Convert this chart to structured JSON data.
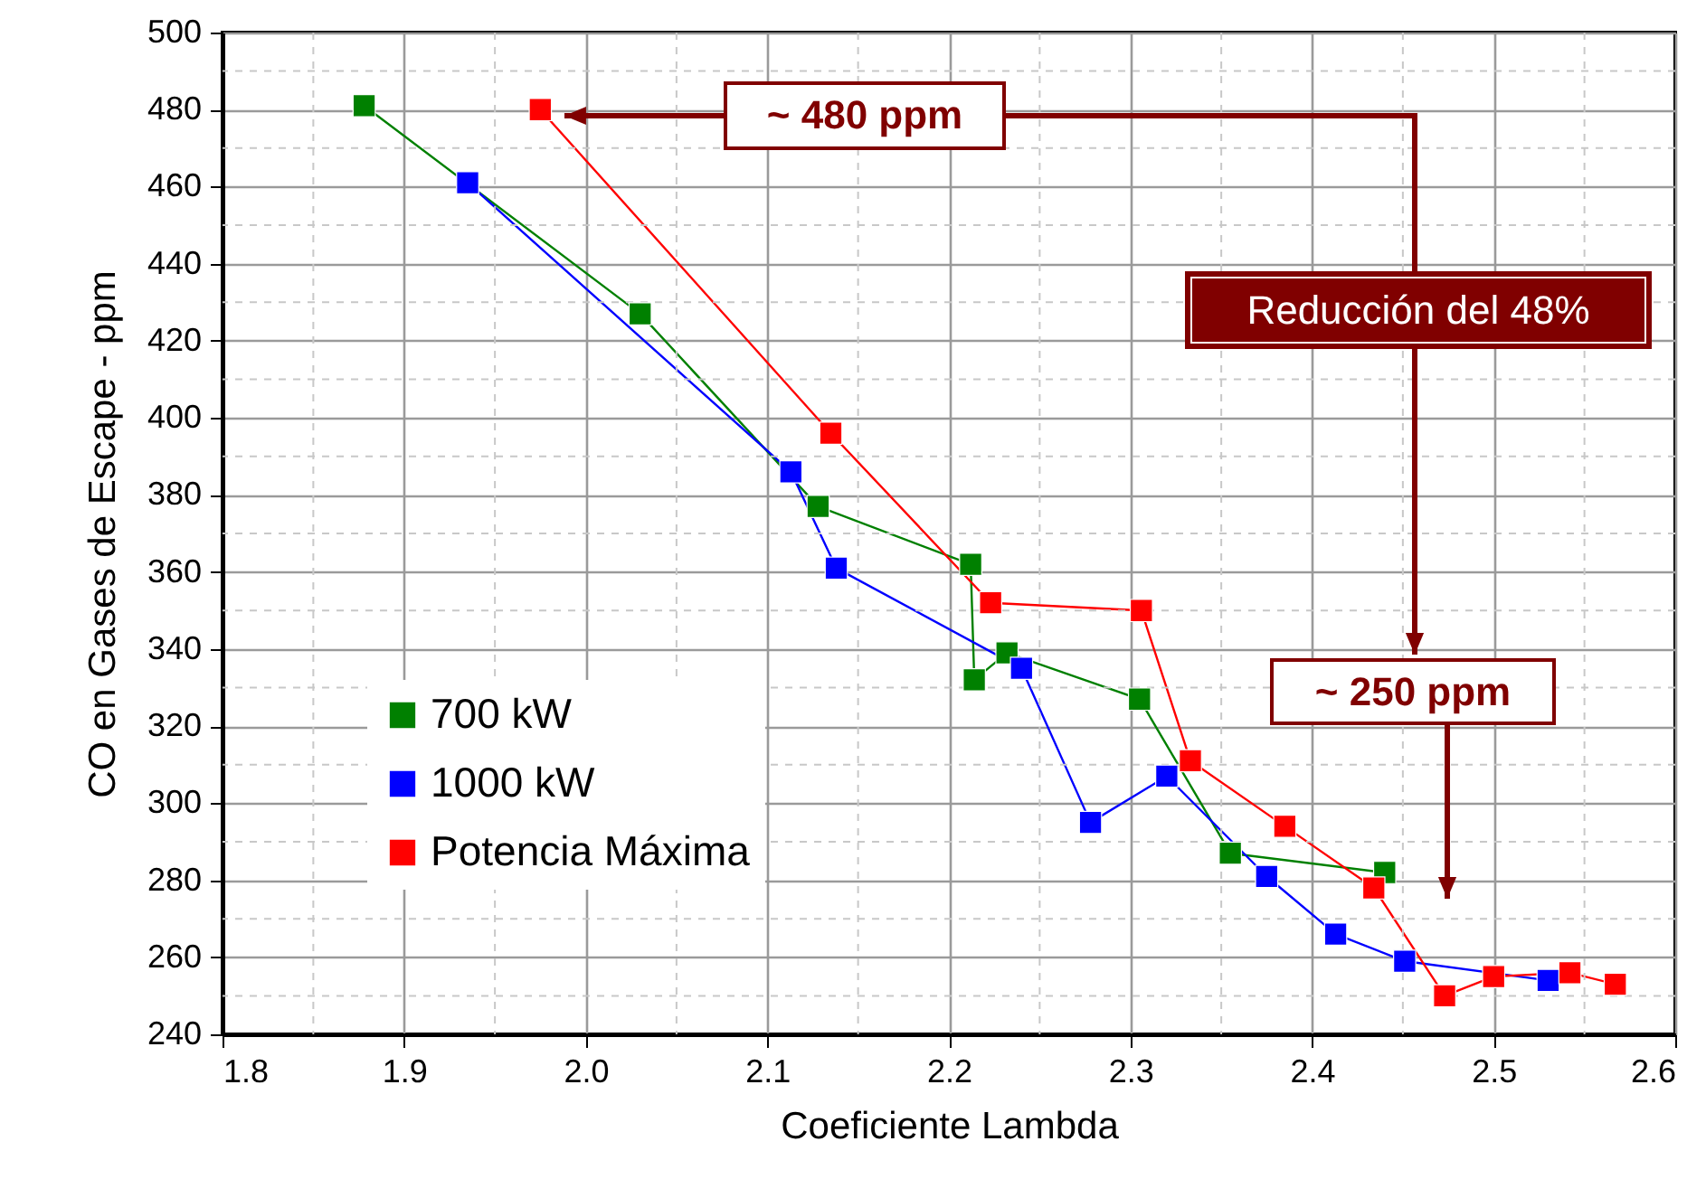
{
  "chart_data": {
    "type": "line",
    "xlabel": "Coeficiente Lambda",
    "ylabel": "CO en Gases de Escape - ppm",
    "xlim": [
      1.8,
      2.6
    ],
    "xticks": [
      1.8,
      {
        "value": 1.9,
        "label": "1.9"
      },
      {
        "value": 2.0,
        "label": "2.0"
      },
      {
        "value": 2.1,
        "label": "2.1"
      },
      {
        "value": 2.2,
        "label": "2.2"
      },
      {
        "value": 2.3,
        "label": "2.3"
      },
      {
        "value": 2.4,
        "label": "2.4"
      },
      {
        "value": 2.5,
        "label": "2.5"
      },
      {
        "value": 2.6,
        "label": "2.6"
      }
    ],
    "ylim": [
      240,
      500
    ],
    "yticks": [
      240,
      260,
      280,
      300,
      320,
      340,
      360,
      380,
      400,
      420,
      440,
      460,
      480,
      500
    ],
    "grid": true,
    "legend": "bottom left",
    "marker": "square",
    "line_style": "solid",
    "series": [
      {
        "name": "700 kW",
        "color": "#008000",
        "x": [
          1.878,
          2.03,
          2.128,
          2.212,
          2.214,
          2.232,
          2.305,
          2.355,
          2.44
        ],
        "values": [
          481,
          427,
          377,
          362,
          332,
          339,
          327,
          287,
          282
        ]
      },
      {
        "name": "1000 kW",
        "color": "#0000ff",
        "x": [
          1.935,
          2.113,
          2.138,
          2.24,
          2.278,
          2.32,
          2.375,
          2.413,
          2.451,
          2.53
        ],
        "values": [
          461,
          386,
          361,
          335,
          295,
          307,
          281,
          266,
          259,
          254
        ]
      },
      {
        "name": "Potencia Máxima",
        "color": "#ff0000",
        "x": [
          1.975,
          2.135,
          2.223,
          2.306,
          2.333,
          2.385,
          2.434,
          2.473,
          2.5,
          2.542,
          2.567
        ],
        "values": [
          480,
          396,
          352,
          350,
          311,
          294,
          278,
          250,
          255,
          256,
          253
        ]
      }
    ],
    "annotations": [
      "~ 480 ppm",
      "Reducción del 48%",
      "~ 250 ppm"
    ]
  }
}
